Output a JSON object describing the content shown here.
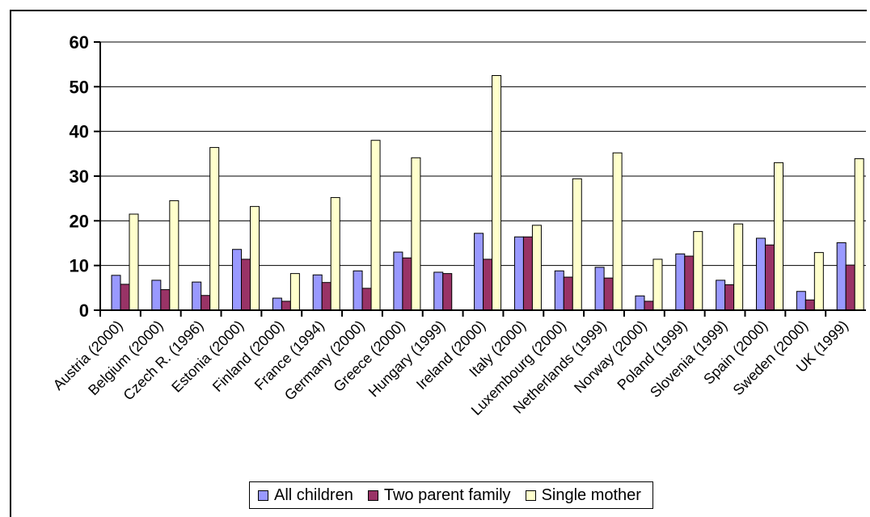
{
  "chart_data": {
    "type": "bar",
    "title": "",
    "xlabel": "",
    "ylabel": "",
    "ylim": [
      0,
      60
    ],
    "yticks": [
      0,
      10,
      20,
      30,
      40,
      50,
      60
    ],
    "grid": true,
    "legend_position": "bottom",
    "categories": [
      "Austria (2000)",
      "Belgium (2000)",
      "Czech R. (1996)",
      "Estonia (2000)",
      "Finland (2000)",
      "France (1994)",
      "Germany (2000)",
      "Greece (2000)",
      "Hungary (1999)",
      "Ireland (2000)",
      "Italy (2000)",
      "Luxembourg (2000)",
      "Netherlands (1999)",
      "Norway (2000)",
      "Poland (1999)",
      "Slovenia (1999)",
      "Spain (2000)",
      "Sweden (2000)",
      "UK (1999)"
    ],
    "series": [
      {
        "name": "All children",
        "color": "#9999ff",
        "values": [
          7.8,
          6.7,
          6.3,
          13.6,
          2.7,
          7.9,
          8.8,
          13.0,
          8.5,
          17.2,
          16.4,
          8.8,
          9.6,
          3.2,
          12.6,
          6.7,
          16.1,
          4.2,
          15.1
        ]
      },
      {
        "name": "Two parent family",
        "color": "#993366",
        "values": [
          5.8,
          4.6,
          3.3,
          11.4,
          2.0,
          6.2,
          4.9,
          11.7,
          8.2,
          11.4,
          16.4,
          7.4,
          7.2,
          2.0,
          12.1,
          5.7,
          14.6,
          2.3,
          10.1
        ]
      },
      {
        "name": "Single mother",
        "color": "#ffffcc",
        "values": [
          21.5,
          24.5,
          36.4,
          23.2,
          8.2,
          25.2,
          38.0,
          34.1,
          null,
          52.5,
          19.0,
          29.4,
          35.2,
          11.4,
          17.6,
          19.3,
          33.0,
          12.9,
          33.9
        ]
      }
    ]
  }
}
